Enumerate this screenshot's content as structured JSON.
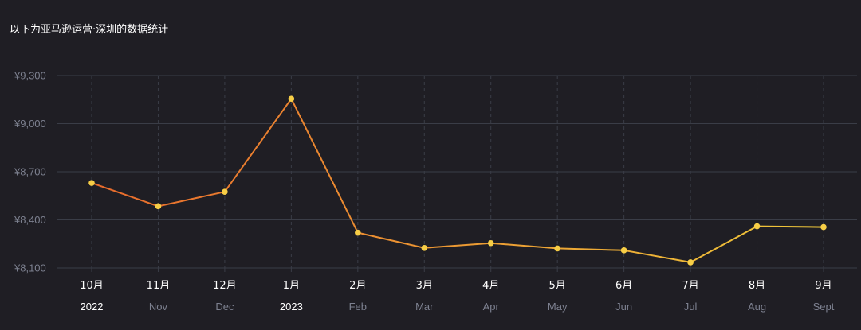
{
  "title": "以下为亚马逊运营·深圳的数据统计",
  "colors": {
    "background": "#1f1e24",
    "grid": "#3a3d47",
    "line_start": "#e86a2c",
    "line_end": "#f0c93a",
    "marker": "#f7ce46",
    "axis_text": "#7d8190"
  },
  "chart_data": {
    "type": "line",
    "title": "以下为亚马逊运营·深圳的数据统计",
    "xlabel": "",
    "ylabel": "",
    "ylim": [
      8100,
      9300
    ],
    "yticks": [
      8100,
      8400,
      8700,
      9000,
      9300
    ],
    "ytick_labels": [
      "¥8,100",
      "¥8,400",
      "¥8,700",
      "¥9,000",
      "¥9,300"
    ],
    "grid": true,
    "x_month_labels": [
      "10月",
      "11月",
      "12月",
      "1月",
      "2月",
      "3月",
      "4月",
      "5月",
      "6月",
      "7月",
      "8月",
      "9月"
    ],
    "x_sub_labels": [
      "2022",
      "Nov",
      "Dec",
      "2023",
      "Feb",
      "Mar",
      "Apr",
      "May",
      "Jun",
      "Jul",
      "Aug",
      "Sept"
    ],
    "x_sub_is_year": [
      true,
      false,
      false,
      true,
      false,
      false,
      false,
      false,
      false,
      false,
      false,
      false
    ],
    "series": [
      {
        "values": [
          8630,
          8485,
          8575,
          9155,
          8320,
          8225,
          8255,
          8222,
          8210,
          8135,
          8360,
          8355
        ]
      }
    ]
  }
}
